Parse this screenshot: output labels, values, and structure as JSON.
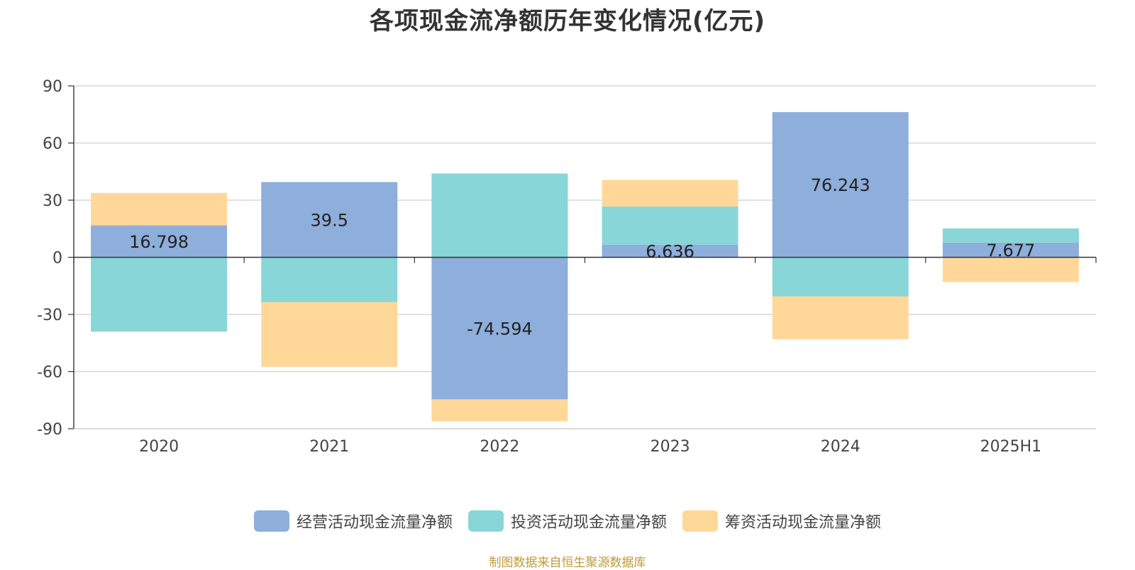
{
  "chart_data": {
    "type": "bar",
    "stacked": true,
    "title": "各项现金流净额历年变化情况(亿元)",
    "categories": [
      "2020",
      "2021",
      "2022",
      "2023",
      "2024",
      "2025H1"
    ],
    "ylim": [
      -90,
      90
    ],
    "yticks": [
      90,
      60,
      30,
      0,
      -30,
      -60,
      -90
    ],
    "grid": true,
    "legend_position": "bottom",
    "series": [
      {
        "name": "经营活动现金流量净额",
        "color": "#8eaedb",
        "values": [
          16.798,
          39.5,
          -74.594,
          6.636,
          76.243,
          7.677
        ],
        "labels": [
          "16.798",
          "39.5",
          "-74.594",
          "6.636",
          "76.243",
          "7.677"
        ]
      },
      {
        "name": "投资活动现金流量净额",
        "color": "#88d6d8",
        "values": [
          -39.0,
          -23.5,
          44.0,
          20.0,
          -20.5,
          7.5
        ]
      },
      {
        "name": "筹资活动现金流量净额",
        "color": "#ffd899",
        "values": [
          17.0,
          -34.0,
          -11.5,
          14.0,
          -22.5,
          -13.0
        ]
      }
    ]
  },
  "footer": {
    "source": "制图数据来自恒生聚源数据库"
  }
}
